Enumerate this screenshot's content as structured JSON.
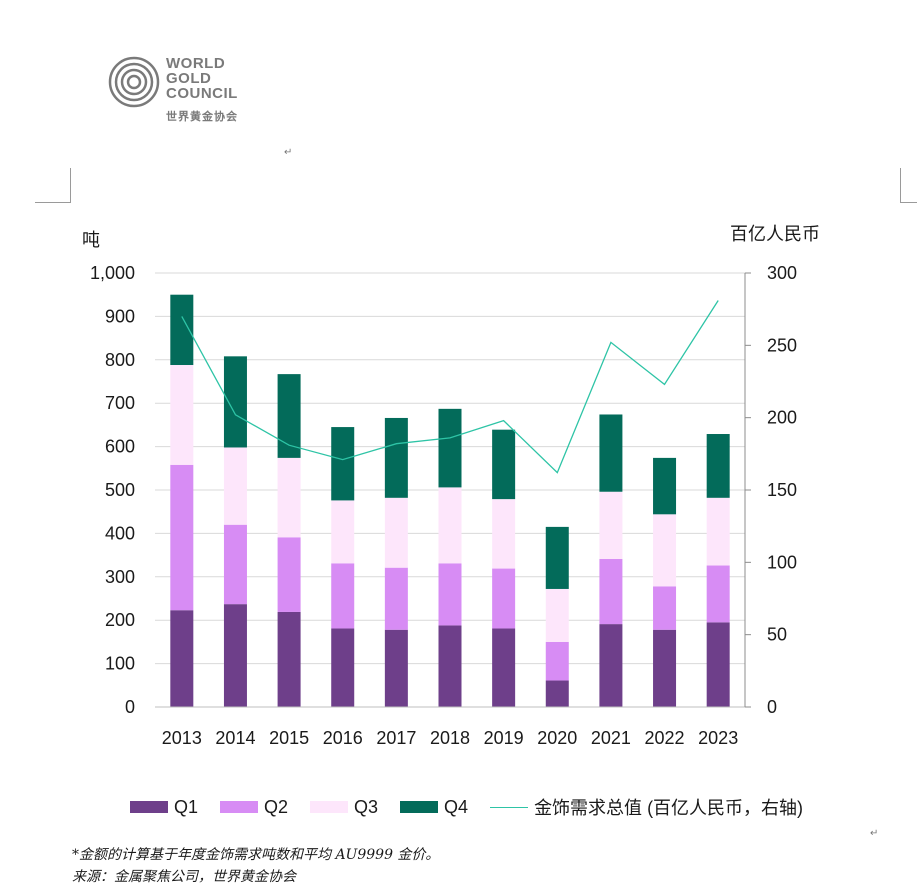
{
  "logo": {
    "line1": "WORLD",
    "line2": "GOLD",
    "line3": "COUNCIL",
    "chinese": "世界黄金协会"
  },
  "marks": {
    "para": "↵"
  },
  "chart_data": {
    "type": "bar",
    "stacked": true,
    "categories": [
      "2013",
      "2014",
      "2015",
      "2016",
      "2017",
      "2018",
      "2019",
      "2020",
      "2021",
      "2022",
      "2023"
    ],
    "series": [
      {
        "name": "Q1",
        "color": "#6e3f8a",
        "values": [
          223,
          237,
          219,
          181,
          178,
          188,
          181,
          61,
          191,
          178,
          195
        ]
      },
      {
        "name": "Q2",
        "color": "#d78cf4",
        "values": [
          335,
          183,
          172,
          150,
          143,
          143,
          138,
          89,
          150,
          100,
          131
        ]
      },
      {
        "name": "Q3",
        "color": "#fde6fb",
        "values": [
          230,
          178,
          183,
          145,
          161,
          175,
          160,
          122,
          155,
          166,
          156
        ]
      },
      {
        "name": "Q4",
        "color": "#036b5a",
        "values": [
          162,
          210,
          193,
          169,
          184,
          181,
          160,
          143,
          178,
          130,
          147
        ]
      }
    ],
    "line": {
      "name": "金饰需求总值 (百亿人民币，右轴)",
      "color": "#2ec4a6",
      "values": [
        270,
        202,
        181,
        171,
        182,
        186,
        198,
        162,
        252,
        223,
        281
      ]
    },
    "y_left": {
      "label": "吨",
      "min": 0,
      "max": 1000,
      "ticks": [
        0,
        100,
        200,
        300,
        400,
        500,
        600,
        700,
        800,
        900,
        1000
      ],
      "tick_labels": [
        "0",
        "100",
        "200",
        "300",
        "400",
        "500",
        "600",
        "700",
        "800",
        "900",
        "1,000"
      ]
    },
    "y_right": {
      "label": "百亿人民币",
      "min": 0,
      "max": 300,
      "ticks": [
        0,
        50,
        100,
        150,
        200,
        250,
        300
      ],
      "tick_labels": [
        "0",
        "50",
        "100",
        "150",
        "200",
        "250",
        "300"
      ]
    },
    "grid": true,
    "legend_position": "bottom"
  },
  "notes": {
    "note1": "*金额的计算基于年度金饰需求吨数和平均 AU9999 金价。",
    "note2": "来源：金属聚焦公司，世界黄金协会"
  }
}
